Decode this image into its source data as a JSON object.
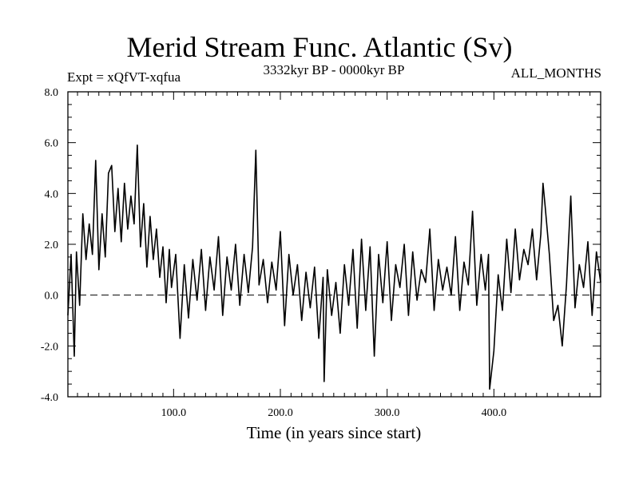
{
  "chart_data": {
    "type": "line",
    "title": "Merid Stream Func. Atlantic (Sv)",
    "subtitle_left": "Expt = xQfVT-xqfua",
    "subtitle_center": "3332kyr BP - 0000kyr BP",
    "subtitle_right": "ALL_MONTHS",
    "xlabel": "Time (in years since start)",
    "ylabel": "",
    "xlim": [
      1,
      500
    ],
    "ylim": [
      -4.0,
      8.0
    ],
    "xticks": [
      100,
      200,
      300,
      400
    ],
    "xtick_labels": [
      "100.0",
      "200.0",
      "300.0",
      "400.0"
    ],
    "yticks": [
      -4,
      -2,
      0,
      2,
      4,
      6,
      8
    ],
    "ytick_labels": [
      "-4.0",
      "-2.0",
      "0.0",
      "2.0",
      "4.0",
      "6.0",
      "8.0"
    ],
    "reference_line": {
      "y": 0.0,
      "style": "dashed"
    },
    "series": [
      {
        "name": "Merid Stream Func. Atlantic",
        "x": [
          1,
          4,
          7,
          9,
          12,
          15,
          18,
          21,
          24,
          27,
          30,
          33,
          36,
          39,
          42,
          45,
          48,
          51,
          54,
          57,
          60,
          63,
          66,
          69,
          72,
          75,
          78,
          81,
          84,
          87,
          90,
          93,
          96,
          98,
          102,
          106,
          110,
          114,
          118,
          122,
          126,
          130,
          134,
          138,
          142,
          146,
          150,
          154,
          158,
          162,
          166,
          170,
          174,
          177,
          180,
          184,
          188,
          192,
          196,
          200,
          204,
          208,
          212,
          216,
          220,
          224,
          228,
          232,
          236,
          240,
          241,
          244,
          248,
          252,
          256,
          260,
          264,
          268,
          272,
          276,
          280,
          284,
          288,
          292,
          296,
          300,
          304,
          308,
          312,
          316,
          320,
          324,
          328,
          332,
          336,
          340,
          344,
          348,
          352,
          356,
          360,
          364,
          368,
          372,
          376,
          380,
          384,
          388,
          392,
          395,
          396,
          400,
          404,
          408,
          412,
          416,
          420,
          424,
          428,
          432,
          436,
          440,
          444,
          446,
          448,
          452,
          456,
          460,
          464,
          468,
          472,
          476,
          480,
          484,
          488,
          492,
          496,
          500
        ],
        "y": [
          -0.8,
          1.6,
          -2.4,
          1.7,
          -0.4,
          3.2,
          1.4,
          2.8,
          1.6,
          5.3,
          1.0,
          3.2,
          1.5,
          4.8,
          5.1,
          2.5,
          4.2,
          2.1,
          4.4,
          2.6,
          3.9,
          2.8,
          5.9,
          1.9,
          3.6,
          1.1,
          3.1,
          1.4,
          2.6,
          0.7,
          1.9,
          -0.3,
          1.8,
          0.3,
          1.6,
          -1.7,
          1.2,
          -0.9,
          1.4,
          -0.2,
          1.8,
          -0.6,
          1.5,
          0.2,
          2.3,
          -0.8,
          1.5,
          0.2,
          2.0,
          -0.4,
          1.6,
          0.1,
          1.9,
          5.7,
          0.4,
          1.4,
          -0.3,
          1.3,
          0.2,
          2.5,
          -1.2,
          1.6,
          0.0,
          1.2,
          -1.0,
          0.9,
          -0.5,
          1.1,
          -1.7,
          0.7,
          -3.4,
          1.0,
          -0.8,
          0.5,
          -1.5,
          1.2,
          -0.4,
          1.8,
          -1.3,
          2.2,
          -0.6,
          1.9,
          -2.4,
          1.6,
          -0.3,
          2.1,
          -1.0,
          1.2,
          0.3,
          2.0,
          -0.8,
          1.7,
          -0.2,
          1.0,
          0.5,
          2.6,
          -0.6,
          1.4,
          0.2,
          1.1,
          0.0,
          2.3,
          -0.6,
          1.3,
          0.4,
          3.3,
          -0.4,
          1.6,
          0.2,
          1.6,
          -3.7,
          -2.2,
          0.8,
          -0.6,
          2.2,
          0.1,
          2.6,
          0.6,
          1.8,
          1.2,
          2.6,
          0.6,
          2.4,
          4.4,
          3.5,
          1.6,
          -1.0,
          -0.4,
          -2.0,
          0.4,
          3.9,
          -0.5,
          1.2,
          0.3,
          2.1,
          -0.8,
          1.7,
          0.5
        ]
      }
    ]
  }
}
